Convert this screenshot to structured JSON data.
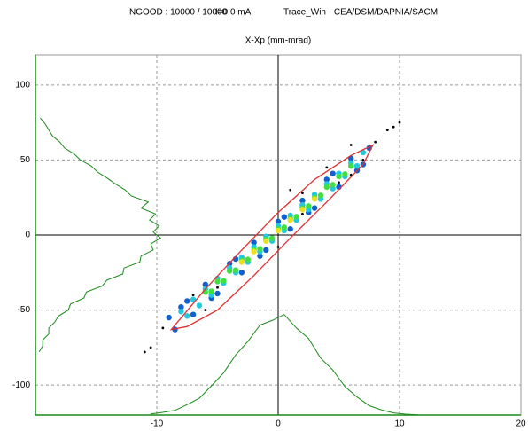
{
  "chart_data": {
    "type": "scatter",
    "title": "NGOOD : 10000 / 10000",
    "annotations": [
      "I=0.0 mA",
      "Trace_Win - CEA/DSM/DAPNIA/SACM"
    ],
    "subtitle": "X-Xp (mm-mrad)",
    "xlim": [
      -20,
      20
    ],
    "ylim": [
      -120,
      120
    ],
    "xticks": [
      -10,
      0,
      10,
      20
    ],
    "yticks": [
      -100,
      -50,
      0,
      50,
      100
    ],
    "grid": true,
    "series": [
      {
        "color": "#000000",
        "x": [
          -11,
          -10.5,
          -9.5,
          -7,
          -5,
          -4,
          -2,
          1,
          2,
          3,
          4,
          5,
          6,
          7,
          8,
          9,
          10,
          9.5,
          -3,
          0,
          2,
          6,
          -6
        ],
        "y": [
          -78,
          -75,
          -62,
          -40,
          -35,
          -20,
          -5,
          30,
          14,
          18,
          45,
          35,
          60,
          50,
          62,
          70,
          75,
          72,
          -26,
          -8,
          28,
          40,
          -50
        ]
      },
      {
        "color": "#1060d0",
        "x": [
          -9,
          -8.5,
          -8,
          -7,
          -6,
          -5,
          -4,
          -3,
          -2,
          -1,
          0,
          1,
          2,
          3,
          4,
          5,
          6,
          7,
          7.5,
          -7.5,
          -5.5,
          -3.5,
          -1.5,
          0.5,
          2.5,
          4.5,
          6.5
        ],
        "y": [
          -55,
          -63,
          -48,
          -53,
          -33,
          -39,
          -19,
          -25,
          -5,
          -10,
          9,
          4,
          23,
          18,
          37,
          32,
          51,
          47,
          58,
          -44,
          -42,
          -16,
          -14,
          12,
          15,
          41,
          43
        ]
      },
      {
        "color": "#20c8e0",
        "x": [
          -8,
          -7.5,
          -7,
          -6.5,
          -6,
          -5.5,
          -5,
          -4.5,
          -4,
          -3.5,
          -3,
          -2.5,
          -2,
          -1.5,
          -1,
          -0.5,
          0,
          0.5,
          1,
          1.5,
          2,
          2.5,
          3,
          3.5,
          4,
          4.5,
          5,
          5.5,
          6,
          6.5,
          7
        ],
        "y": [
          -51,
          -54,
          -43,
          -47,
          -36,
          -40,
          -29,
          -32,
          -22,
          -25,
          -15,
          -18,
          -8,
          -11,
          -1,
          -4,
          6,
          3,
          13,
          10,
          20,
          17,
          27,
          24,
          34,
          31,
          41,
          39,
          48,
          46,
          55
        ]
      },
      {
        "color": "#40e040",
        "x": [
          -6,
          -5.5,
          -5,
          -4.5,
          -4,
          -3.5,
          -3,
          -2.5,
          -2,
          -1.5,
          -1,
          -0.5,
          0,
          0.5,
          1,
          1.5,
          2,
          2.5,
          3,
          3.5,
          4,
          4.5,
          5,
          5.5,
          6
        ],
        "y": [
          -38,
          -37.5,
          -31,
          -30.5,
          -24,
          -23.4,
          -17,
          -16.3,
          -10,
          -9.2,
          -3,
          -2.1,
          4,
          5.1,
          11,
          12.2,
          18,
          19.3,
          25,
          26.4,
          32,
          33.5,
          39,
          40.6,
          46
        ]
      },
      {
        "color": "#e8e020",
        "x": [
          -3,
          -2,
          -1,
          0,
          1,
          2,
          3
        ],
        "y": [
          -18,
          -11,
          -4,
          3,
          10,
          17,
          24
        ]
      }
    ],
    "ellipse": {
      "color": "#e03030",
      "x": [
        -8.8,
        -6,
        -3,
        0,
        3,
        6,
        7.8,
        7,
        4,
        1,
        -2,
        -5,
        -7.5
      ],
      "y": [
        -63,
        -36,
        -10,
        15,
        37,
        53,
        60,
        47,
        22,
        -2,
        -27,
        -50,
        -61
      ]
    },
    "histograms": [
      {
        "color": "#1a8a1a",
        "x": [
          -10.5,
          -9.5,
          -8.5,
          -7.5,
          -6.5,
          -5.5,
          -4.5,
          -3.5,
          -2.5,
          -1.5,
          -0.5,
          0.5,
          1.5,
          2.5,
          3.5,
          4.5,
          5.5,
          6.5,
          7.5,
          8.5,
          9.5,
          10.5,
          11.5
        ],
        "y": [
          -119.3,
          -118.2,
          -116.9,
          -113,
          -108.8,
          -100.5,
          -92,
          -80,
          -71,
          -60,
          -57,
          -53,
          -62,
          -69,
          -82,
          -90,
          -101,
          -108,
          -113.8,
          -116.5,
          -118.6,
          -119.4,
          -119.8
        ]
      },
      {
        "color": "#1a8a1a",
        "x": [
          -19.7,
          -19.4,
          -19.4,
          -18.9,
          -18.9,
          -18.4,
          -18.1,
          -17.3,
          -17.1,
          -16,
          -15.8,
          -14.5,
          -14.1,
          -12.8,
          -12.7,
          -11.4,
          -11.3,
          -10.3,
          -10.5,
          -9.7,
          -10.3,
          -9.8,
          -10.6,
          -10.1,
          -11.3,
          -10.7,
          -12.1,
          -12.6,
          -13.4,
          -14.1,
          -14.9,
          -15.4,
          -16.3,
          -16.8,
          -17.6,
          -18,
          -18.6,
          -18.9,
          -19.2,
          -19.6
        ],
        "y": [
          -78,
          -74,
          -70,
          -66,
          -62,
          -58,
          -54,
          -50,
          -46,
          -42,
          -38,
          -34,
          -30,
          -26,
          -22,
          -18,
          -14,
          -10,
          -6,
          -2,
          2,
          6,
          10,
          14,
          18,
          22,
          26,
          30,
          34,
          38,
          42,
          46,
          50,
          54,
          58,
          62,
          66,
          70,
          74,
          78
        ]
      }
    ]
  }
}
